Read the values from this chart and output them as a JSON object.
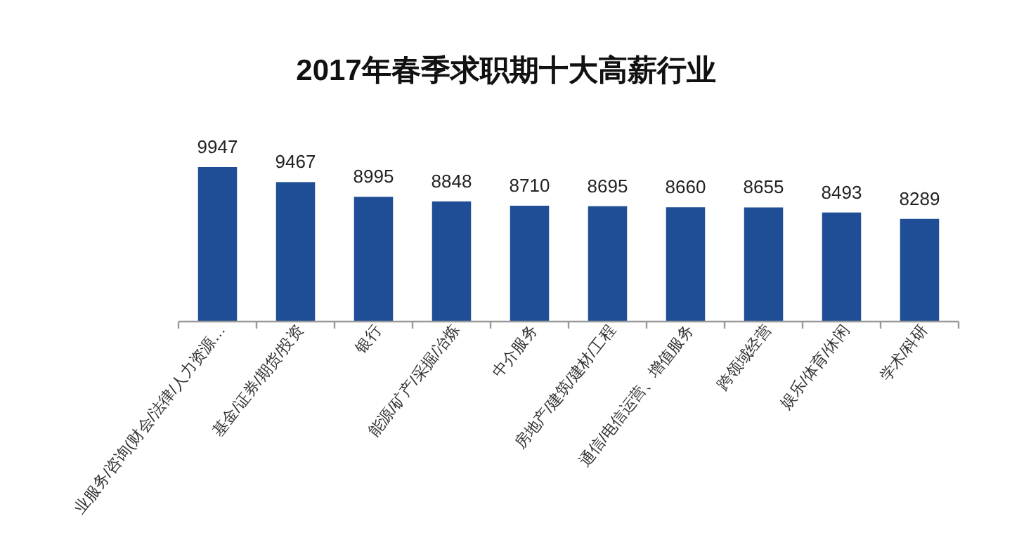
{
  "chart_data": {
    "type": "bar",
    "title": "2017年春季求职期十大高薪行业",
    "categories": [
      "业服务/咨询(财会/法律/人力资源…",
      "基金/证券/期货/投资",
      "银行",
      "能源/矿产/采掘/冶炼",
      "中介服务",
      "房地产/建筑/建材/工程",
      "通信/电信运营、增值服务",
      "跨领域经营",
      "娱乐/体育/休闲",
      "学术/科研"
    ],
    "values": [
      9947,
      9467,
      8995,
      8848,
      8710,
      8695,
      8660,
      8655,
      8493,
      8289
    ],
    "color": "#1f4e96",
    "ylim": [
      5000,
      9947
    ],
    "tick_labels": "x",
    "data_labels": true
  }
}
